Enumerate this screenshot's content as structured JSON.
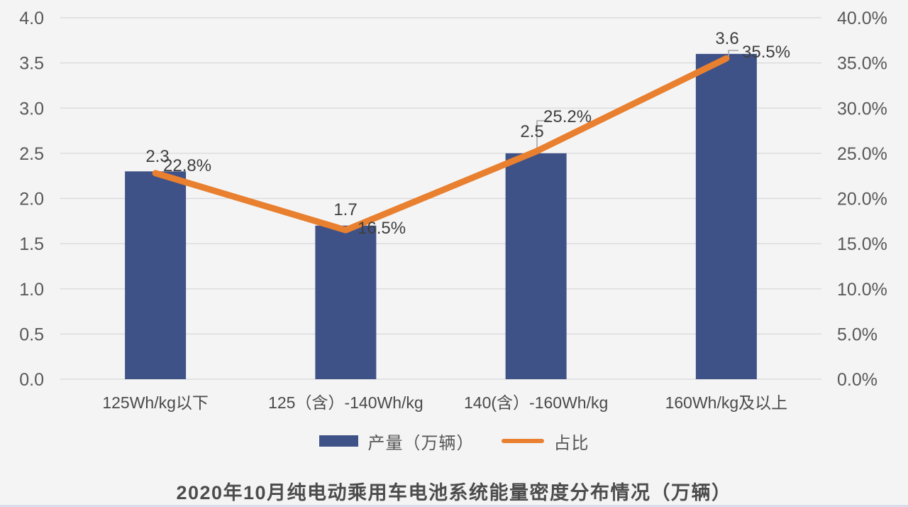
{
  "chart_data": {
    "type": "bar",
    "subtype": "bar-line-combo",
    "title": "2020年10月纯电动乘用车电池系统能量密度分布情况（万辆）",
    "categories": [
      "125Wh/kg以下",
      "125（含）-140Wh/kg",
      "140(含）-160Wh/kg",
      "160Wh/kg及以上"
    ],
    "series": [
      {
        "name": "产量（万辆）",
        "type": "bar",
        "axis": "left",
        "values": [
          2.3,
          1.7,
          2.5,
          3.6
        ],
        "labels": [
          "2.3",
          "1.7",
          "2.5",
          "3.6"
        ],
        "color": "#3f5287"
      },
      {
        "name": "占比",
        "type": "line",
        "axis": "right",
        "values": [
          22.8,
          16.5,
          25.2,
          35.5
        ],
        "labels": [
          "22.8%",
          "16.5%",
          "25.2%",
          "35.5%"
        ],
        "color": "#e8802f"
      }
    ],
    "left_axis": {
      "min": 0,
      "max": 4,
      "step": 0.5,
      "ticks": [
        "4.0",
        "3.5",
        "3.0",
        "2.5",
        "2.0",
        "1.5",
        "1.0",
        "0.5",
        "0.0"
      ]
    },
    "right_axis": {
      "min": 0,
      "max": 40,
      "step": 5,
      "ticks": [
        "40.0%",
        "35.0%",
        "30.0%",
        "25.0%",
        "20.0%",
        "15.0%",
        "10.0%",
        "5.0%",
        "0.0%"
      ]
    },
    "grid": true,
    "legend_position": "bottom"
  },
  "legend": {
    "bar_label": "产量（万辆）",
    "line_label": "占比"
  },
  "colors": {
    "background": "#f4f4f5",
    "bar": "#3f5287",
    "line": "#e8802f",
    "grid": "#d8d8da",
    "axis_text": "#595959",
    "category_text": "#4a4a4a",
    "data_label_text": "#3f3f3f",
    "leader_line": "#a6a6a6",
    "title_text": "#4c4c4c",
    "bottom_strip": "#c2cbdf"
  }
}
